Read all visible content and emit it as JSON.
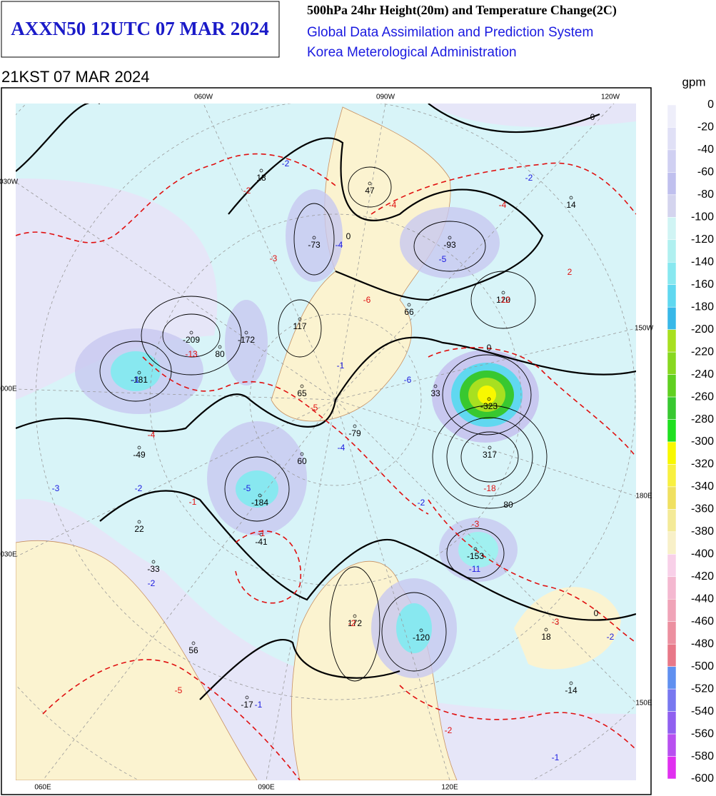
{
  "header": {
    "product": "AXXN50 12UTC 07 MAR 2024",
    "title": "500hPa 24hr Height(20m) and Temperature Change(2C)",
    "system": "Global Data Assimilation and Prediction System",
    "agency": "Korea Meterological Administration"
  },
  "valid_time": "21KST 07 MAR 2024",
  "map": {
    "lon_labels": [
      "060W",
      "090W",
      "120W",
      "030W",
      "150W",
      "000E",
      "180E",
      "030E",
      "150E",
      "060E",
      "090E",
      "120E"
    ],
    "height_labels": [
      "18",
      "47",
      "-73",
      "-93",
      "14",
      "120",
      "66",
      "117",
      "-172",
      "-209",
      "80",
      "-181",
      "65",
      "33",
      "-323",
      "-79",
      "60",
      "-49",
      "-184",
      "317",
      "22",
      "-41",
      "-153",
      "-33",
      "172",
      "-120",
      "18",
      "56",
      "-17",
      "-14",
      "80",
      "0",
      "0",
      "0",
      "0"
    ],
    "temp_red_labels": [
      "-2",
      "-4",
      "-4",
      "-3",
      "2",
      "-6",
      "-12",
      "-13",
      "-5",
      "-4",
      "-18",
      "-1",
      "-3",
      "-3",
      "-5",
      "-2",
      "-2",
      "-1"
    ],
    "temp_blue_labels": [
      "-2",
      "-2",
      "-4",
      "-5",
      "-6",
      "-1",
      "-4",
      "-3",
      "-2",
      "-5",
      "-2",
      "-11",
      "-2",
      "-2",
      "-1",
      "-1",
      "-1"
    ]
  },
  "colorbar": {
    "unit": "gpm",
    "levels": [
      0,
      -20,
      -40,
      -60,
      -80,
      -100,
      -120,
      -140,
      -160,
      -180,
      -200,
      -220,
      -240,
      -260,
      -280,
      -300,
      -320,
      -340,
      -360,
      -380,
      -400,
      -420,
      -440,
      -460,
      -480,
      -500,
      -520,
      -540,
      -560,
      -580,
      -600
    ],
    "colors": [
      "#eeeefa",
      "#e0e0f6",
      "#d0d0f2",
      "#c0c0ee",
      "#d4d4ee",
      "#d0f4f4",
      "#b0f0f0",
      "#88e8f0",
      "#60d8f0",
      "#38b8e8",
      "#a8e020",
      "#88d820",
      "#60d020",
      "#38c830",
      "#20e020",
      "#f8f800",
      "#f8f040",
      "#f0e060",
      "#f4ea98",
      "#f8f0c8",
      "#f8d0e8",
      "#f4b8d0",
      "#f0a4b8",
      "#ec90a0",
      "#e87888",
      "#6090f0",
      "#7878f0",
      "#9060f0",
      "#b850f0",
      "#e030f0"
    ]
  }
}
